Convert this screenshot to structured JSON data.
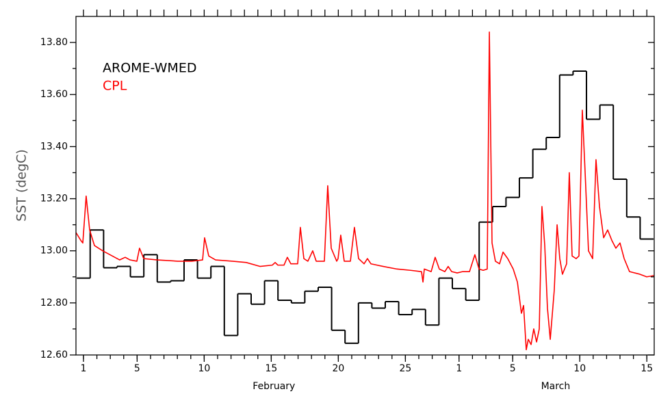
{
  "chart_data": {
    "type": "line",
    "ylabel": "SST (degC)",
    "xlim": [
      0.44,
      43.55
    ],
    "ylim": [
      12.6,
      13.9
    ],
    "yticks": [
      {
        "value": 12.6,
        "label": "12.60"
      },
      {
        "value": 12.8,
        "label": "12.80"
      },
      {
        "value": 13.0,
        "label": "13.00"
      },
      {
        "value": 13.2,
        "label": "13.20"
      },
      {
        "value": 13.4,
        "label": "13.40"
      },
      {
        "value": 13.6,
        "label": "13.60"
      },
      {
        "value": 13.8,
        "label": "13.80"
      }
    ],
    "xticks": [
      1,
      5,
      10,
      15,
      20,
      25,
      {
        "value": 29,
        "label": "1"
      },
      {
        "value": 33,
        "label": "5"
      },
      {
        "value": 38,
        "label": "10"
      },
      {
        "value": 43,
        "label": "15"
      }
    ],
    "month_labels": [
      {
        "value": 15.2,
        "label": "February"
      },
      {
        "value": 36.2,
        "label": "March"
      }
    ],
    "legend": "upper left",
    "series": [
      {
        "name": "AROME-WMED",
        "color": "#000000",
        "step": true,
        "x": [
          1,
          2,
          3,
          4,
          5,
          6,
          7,
          8,
          9,
          10,
          11,
          12,
          13,
          14,
          15,
          16,
          17,
          18,
          19,
          20,
          21,
          22,
          23,
          24,
          25,
          26,
          27,
          28,
          29,
          30,
          31,
          32,
          33,
          34,
          35,
          36,
          37,
          38,
          39,
          40,
          41,
          42,
          43
        ],
        "values": [
          12.895,
          13.08,
          12.935,
          12.94,
          12.9,
          12.985,
          12.88,
          12.885,
          12.965,
          12.895,
          12.94,
          12.675,
          12.835,
          12.795,
          12.885,
          12.81,
          12.8,
          12.845,
          12.86,
          12.695,
          12.645,
          12.8,
          12.78,
          12.805,
          12.755,
          12.775,
          12.715,
          12.895,
          12.855,
          12.81,
          13.11,
          13.17,
          13.205,
          13.28,
          13.39,
          13.435,
          13.675,
          13.69,
          13.505,
          13.56,
          13.275,
          13.13,
          13.045
        ]
      },
      {
        "name": "CPL",
        "color": "#ff0000",
        "step": false,
        "x": [
          0.44,
          0.8,
          0.95,
          1.2,
          1.46,
          1.82,
          2.43,
          3.7,
          4.11,
          4.47,
          4.98,
          5.18,
          5.49,
          6.51,
          8.04,
          9.06,
          9.88,
          10.03,
          10.34,
          10.85,
          12.12,
          13.14,
          14.16,
          15.08,
          15.29,
          15.49,
          15.95,
          16.2,
          16.46,
          16.97,
          17.17,
          17.43,
          17.73,
          18.09,
          18.35,
          18.96,
          19.21,
          19.47,
          19.88,
          19.98,
          20.18,
          20.44,
          20.9,
          21.2,
          21.51,
          21.92,
          22.17,
          22.43,
          23.35,
          24.37,
          25.39,
          26.2,
          26.31,
          26.41,
          26.92,
          27.22,
          27.53,
          27.94,
          28.19,
          28.45,
          28.86,
          29.27,
          29.78,
          30.18,
          30.49,
          30.8,
          31.1,
          31.26,
          31.46,
          31.71,
          32.02,
          32.28,
          32.63,
          33.04,
          33.35,
          33.65,
          33.81,
          34.01,
          34.16,
          34.37,
          34.57,
          34.78,
          34.98,
          35.18,
          35.39,
          35.59,
          35.8,
          36.1,
          36.31,
          36.51,
          36.71,
          37.02,
          37.22,
          37.43,
          37.73,
          37.94,
          38.19,
          38.4,
          38.65,
          38.96,
          39.21,
          39.47,
          39.78,
          40.08,
          40.39,
          40.69,
          41.0,
          41.31,
          41.71,
          42.48,
          42.99,
          43.55
        ],
        "values": [
          13.07,
          13.04,
          13.03,
          13.21,
          13.08,
          13.02,
          13.0,
          12.965,
          12.975,
          12.965,
          12.96,
          13.01,
          12.97,
          12.965,
          12.96,
          12.96,
          12.965,
          13.05,
          12.98,
          12.965,
          12.96,
          12.955,
          12.94,
          12.945,
          12.955,
          12.945,
          12.945,
          12.975,
          12.95,
          12.95,
          13.09,
          12.97,
          12.96,
          13.0,
          12.96,
          12.96,
          13.25,
          13.01,
          12.96,
          12.97,
          13.06,
          12.96,
          12.96,
          13.09,
          12.97,
          12.95,
          12.97,
          12.95,
          12.94,
          12.93,
          12.925,
          12.92,
          12.88,
          12.93,
          12.92,
          12.975,
          12.93,
          12.92,
          12.94,
          12.92,
          12.915,
          12.92,
          12.92,
          12.985,
          12.93,
          12.925,
          12.93,
          13.84,
          13.03,
          12.96,
          12.95,
          12.995,
          12.97,
          12.93,
          12.88,
          12.76,
          12.79,
          12.62,
          12.66,
          12.64,
          12.7,
          12.65,
          12.7,
          13.17,
          13.02,
          12.78,
          12.66,
          12.85,
          13.1,
          12.97,
          12.91,
          12.95,
          13.3,
          12.98,
          12.97,
          12.98,
          13.54,
          13.3,
          13.0,
          12.97,
          13.35,
          13.17,
          13.05,
          13.08,
          13.04,
          13.01,
          13.03,
          12.97,
          12.92,
          12.91,
          12.9,
          12.905
        ]
      }
    ]
  }
}
